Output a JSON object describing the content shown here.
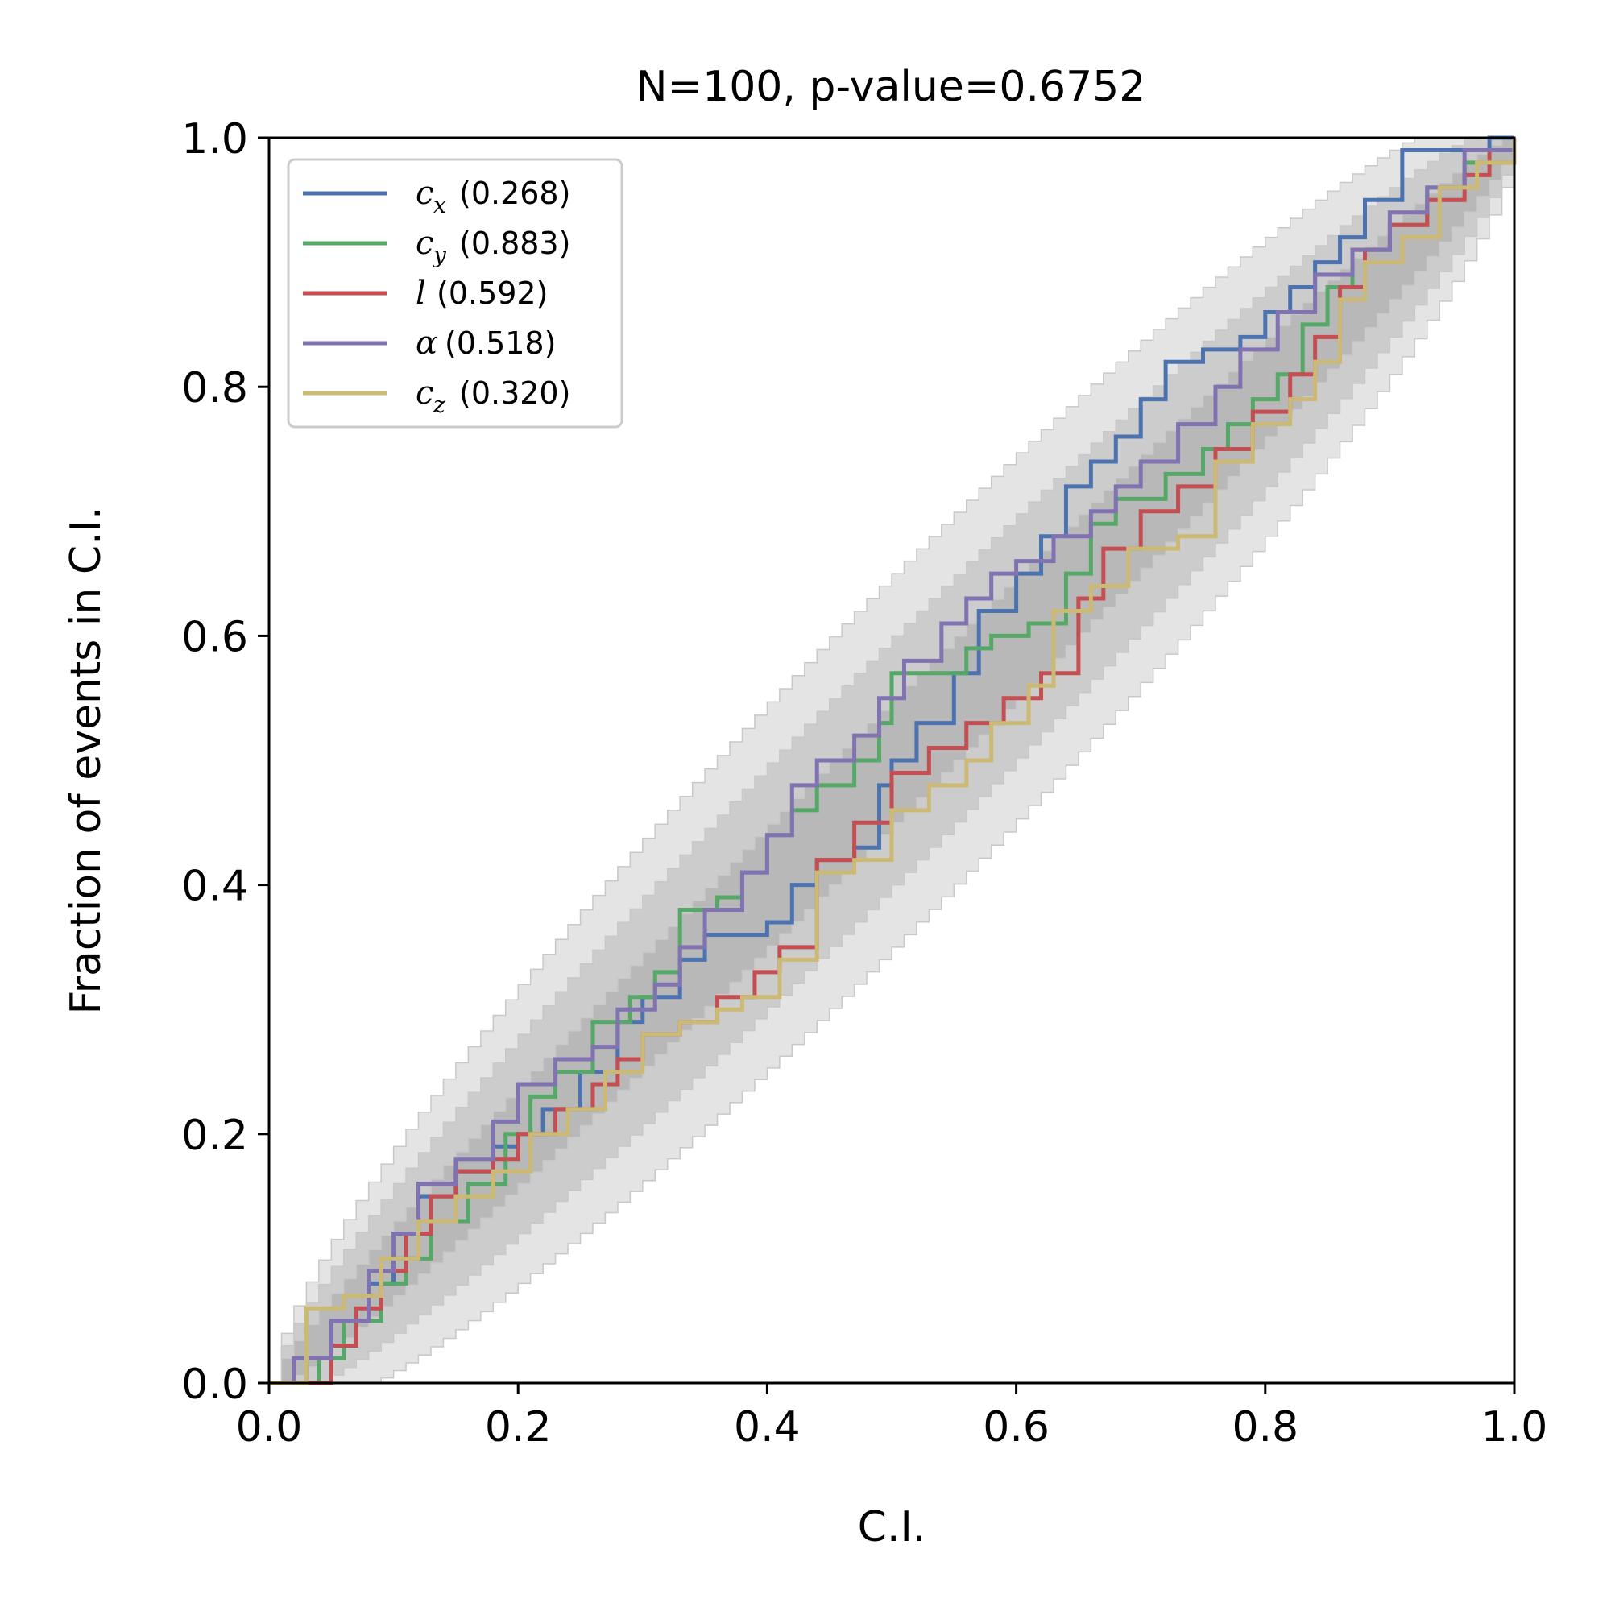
{
  "chart_data": {
    "type": "line",
    "title": "N=100, p-value=0.6752",
    "xlabel": "C.I.",
    "ylabel": "Fraction of events in C.I.",
    "xlim": [
      0.0,
      1.0
    ],
    "ylim": [
      0.0,
      1.0
    ],
    "xticks": [
      "0.0",
      "0.2",
      "0.4",
      "0.6",
      "0.8",
      "1.0"
    ],
    "yticks": [
      "0.0",
      "0.2",
      "0.4",
      "0.6",
      "0.8",
      "1.0"
    ],
    "grid": false,
    "legend_position": "top-left",
    "confidence_bands": {
      "description_levels": [
        "1-sigma",
        "2-sigma",
        "3-sigma"
      ],
      "colors": [
        "#b8b8b8",
        "#cccccc",
        "#e4e4e4"
      ]
    },
    "series": [
      {
        "name": "c_x",
        "symbol": "c",
        "subscript": "x",
        "pvalue": "(0.268)",
        "color": "#4c72b0",
        "points": [
          [
            0,
            0
          ],
          [
            0.02,
            0
          ],
          [
            0.03,
            0.02
          ],
          [
            0.05,
            0.05
          ],
          [
            0.08,
            0.08
          ],
          [
            0.1,
            0.1
          ],
          [
            0.12,
            0.15
          ],
          [
            0.15,
            0.17
          ],
          [
            0.18,
            0.19
          ],
          [
            0.2,
            0.2
          ],
          [
            0.22,
            0.22
          ],
          [
            0.25,
            0.25
          ],
          [
            0.28,
            0.29
          ],
          [
            0.3,
            0.31
          ],
          [
            0.33,
            0.34
          ],
          [
            0.35,
            0.36
          ],
          [
            0.38,
            0.36
          ],
          [
            0.4,
            0.37
          ],
          [
            0.42,
            0.4
          ],
          [
            0.44,
            0.42
          ],
          [
            0.47,
            0.43
          ],
          [
            0.49,
            0.48
          ],
          [
            0.5,
            0.5
          ],
          [
            0.52,
            0.53
          ],
          [
            0.55,
            0.57
          ],
          [
            0.57,
            0.62
          ],
          [
            0.6,
            0.65
          ],
          [
            0.62,
            0.68
          ],
          [
            0.64,
            0.72
          ],
          [
            0.66,
            0.74
          ],
          [
            0.68,
            0.76
          ],
          [
            0.7,
            0.79
          ],
          [
            0.72,
            0.82
          ],
          [
            0.75,
            0.83
          ],
          [
            0.78,
            0.84
          ],
          [
            0.8,
            0.86
          ],
          [
            0.82,
            0.88
          ],
          [
            0.84,
            0.9
          ],
          [
            0.86,
            0.92
          ],
          [
            0.88,
            0.95
          ],
          [
            0.91,
            0.99
          ],
          [
            0.95,
            0.99
          ],
          [
            0.98,
            1.0
          ],
          [
            1.0,
            1.0
          ]
        ]
      },
      {
        "name": "c_y",
        "symbol": "c",
        "subscript": "y",
        "pvalue": "(0.883)",
        "color": "#55a868",
        "points": [
          [
            0,
            0
          ],
          [
            0.02,
            0
          ],
          [
            0.04,
            0.02
          ],
          [
            0.06,
            0.05
          ],
          [
            0.09,
            0.08
          ],
          [
            0.11,
            0.1
          ],
          [
            0.13,
            0.13
          ],
          [
            0.16,
            0.16
          ],
          [
            0.19,
            0.2
          ],
          [
            0.21,
            0.23
          ],
          [
            0.23,
            0.25
          ],
          [
            0.26,
            0.29
          ],
          [
            0.29,
            0.31
          ],
          [
            0.31,
            0.33
          ],
          [
            0.33,
            0.38
          ],
          [
            0.36,
            0.39
          ],
          [
            0.38,
            0.41
          ],
          [
            0.4,
            0.44
          ],
          [
            0.42,
            0.46
          ],
          [
            0.44,
            0.48
          ],
          [
            0.47,
            0.5
          ],
          [
            0.49,
            0.53
          ],
          [
            0.5,
            0.57
          ],
          [
            0.53,
            0.57
          ],
          [
            0.56,
            0.59
          ],
          [
            0.58,
            0.6
          ],
          [
            0.61,
            0.61
          ],
          [
            0.64,
            0.65
          ],
          [
            0.66,
            0.69
          ],
          [
            0.68,
            0.71
          ],
          [
            0.72,
            0.73
          ],
          [
            0.75,
            0.75
          ],
          [
            0.77,
            0.77
          ],
          [
            0.79,
            0.79
          ],
          [
            0.81,
            0.81
          ],
          [
            0.83,
            0.85
          ],
          [
            0.85,
            0.88
          ],
          [
            0.87,
            0.91
          ],
          [
            0.9,
            0.93
          ],
          [
            0.93,
            0.96
          ],
          [
            0.96,
            0.98
          ],
          [
            1.0,
            1.0
          ]
        ]
      },
      {
        "name": "l",
        "symbol": "l",
        "subscript": "",
        "pvalue": "(0.592)",
        "color": "#c44e52",
        "points": [
          [
            0,
            0
          ],
          [
            0.03,
            0
          ],
          [
            0.05,
            0.03
          ],
          [
            0.07,
            0.06
          ],
          [
            0.09,
            0.09
          ],
          [
            0.11,
            0.12
          ],
          [
            0.13,
            0.15
          ],
          [
            0.15,
            0.17
          ],
          [
            0.18,
            0.18
          ],
          [
            0.2,
            0.2
          ],
          [
            0.23,
            0.22
          ],
          [
            0.26,
            0.24
          ],
          [
            0.28,
            0.26
          ],
          [
            0.3,
            0.28
          ],
          [
            0.33,
            0.29
          ],
          [
            0.36,
            0.31
          ],
          [
            0.39,
            0.33
          ],
          [
            0.41,
            0.35
          ],
          [
            0.44,
            0.42
          ],
          [
            0.47,
            0.45
          ],
          [
            0.5,
            0.49
          ],
          [
            0.53,
            0.51
          ],
          [
            0.56,
            0.53
          ],
          [
            0.59,
            0.55
          ],
          [
            0.62,
            0.57
          ],
          [
            0.65,
            0.63
          ],
          [
            0.67,
            0.67
          ],
          [
            0.7,
            0.7
          ],
          [
            0.73,
            0.72
          ],
          [
            0.76,
            0.75
          ],
          [
            0.79,
            0.78
          ],
          [
            0.82,
            0.81
          ],
          [
            0.84,
            0.84
          ],
          [
            0.86,
            0.88
          ],
          [
            0.88,
            0.91
          ],
          [
            0.9,
            0.93
          ],
          [
            0.93,
            0.95
          ],
          [
            0.96,
            0.97
          ],
          [
            0.98,
            0.99
          ],
          [
            1.0,
            1.0
          ]
        ]
      },
      {
        "name": "alpha",
        "symbol": "α",
        "subscript": "",
        "pvalue": "(0.518)",
        "color": "#8172b2",
        "points": [
          [
            0,
            0
          ],
          [
            0.02,
            0.02
          ],
          [
            0.05,
            0.05
          ],
          [
            0.08,
            0.09
          ],
          [
            0.1,
            0.12
          ],
          [
            0.12,
            0.16
          ],
          [
            0.15,
            0.18
          ],
          [
            0.18,
            0.21
          ],
          [
            0.2,
            0.24
          ],
          [
            0.23,
            0.26
          ],
          [
            0.26,
            0.27
          ],
          [
            0.28,
            0.3
          ],
          [
            0.31,
            0.32
          ],
          [
            0.33,
            0.35
          ],
          [
            0.35,
            0.38
          ],
          [
            0.38,
            0.41
          ],
          [
            0.4,
            0.44
          ],
          [
            0.42,
            0.48
          ],
          [
            0.44,
            0.5
          ],
          [
            0.47,
            0.52
          ],
          [
            0.49,
            0.55
          ],
          [
            0.51,
            0.58
          ],
          [
            0.54,
            0.61
          ],
          [
            0.56,
            0.63
          ],
          [
            0.58,
            0.65
          ],
          [
            0.6,
            0.66
          ],
          [
            0.63,
            0.68
          ],
          [
            0.66,
            0.7
          ],
          [
            0.68,
            0.72
          ],
          [
            0.7,
            0.74
          ],
          [
            0.73,
            0.77
          ],
          [
            0.76,
            0.8
          ],
          [
            0.78,
            0.83
          ],
          [
            0.81,
            0.86
          ],
          [
            0.84,
            0.89
          ],
          [
            0.87,
            0.91
          ],
          [
            0.9,
            0.94
          ],
          [
            0.93,
            0.96
          ],
          [
            0.96,
            0.99
          ],
          [
            1.0,
            1.0
          ]
        ]
      },
      {
        "name": "c_z",
        "symbol": "c",
        "subscript": "z",
        "pvalue": "(0.320)",
        "color": "#ccb974",
        "points": [
          [
            0,
            0
          ],
          [
            0.01,
            0
          ],
          [
            0.03,
            0.06
          ],
          [
            0.06,
            0.07
          ],
          [
            0.09,
            0.1
          ],
          [
            0.12,
            0.13
          ],
          [
            0.15,
            0.15
          ],
          [
            0.18,
            0.17
          ],
          [
            0.21,
            0.2
          ],
          [
            0.24,
            0.22
          ],
          [
            0.27,
            0.25
          ],
          [
            0.3,
            0.28
          ],
          [
            0.33,
            0.29
          ],
          [
            0.36,
            0.3
          ],
          [
            0.38,
            0.31
          ],
          [
            0.41,
            0.34
          ],
          [
            0.44,
            0.41
          ],
          [
            0.47,
            0.42
          ],
          [
            0.5,
            0.46
          ],
          [
            0.53,
            0.48
          ],
          [
            0.56,
            0.5
          ],
          [
            0.58,
            0.53
          ],
          [
            0.61,
            0.56
          ],
          [
            0.63,
            0.62
          ],
          [
            0.66,
            0.64
          ],
          [
            0.69,
            0.67
          ],
          [
            0.73,
            0.68
          ],
          [
            0.76,
            0.74
          ],
          [
            0.79,
            0.77
          ],
          [
            0.82,
            0.79
          ],
          [
            0.84,
            0.82
          ],
          [
            0.86,
            0.87
          ],
          [
            0.88,
            0.9
          ],
          [
            0.91,
            0.92
          ],
          [
            0.94,
            0.96
          ],
          [
            0.97,
            0.98
          ],
          [
            1.0,
            1.0
          ]
        ]
      }
    ]
  }
}
